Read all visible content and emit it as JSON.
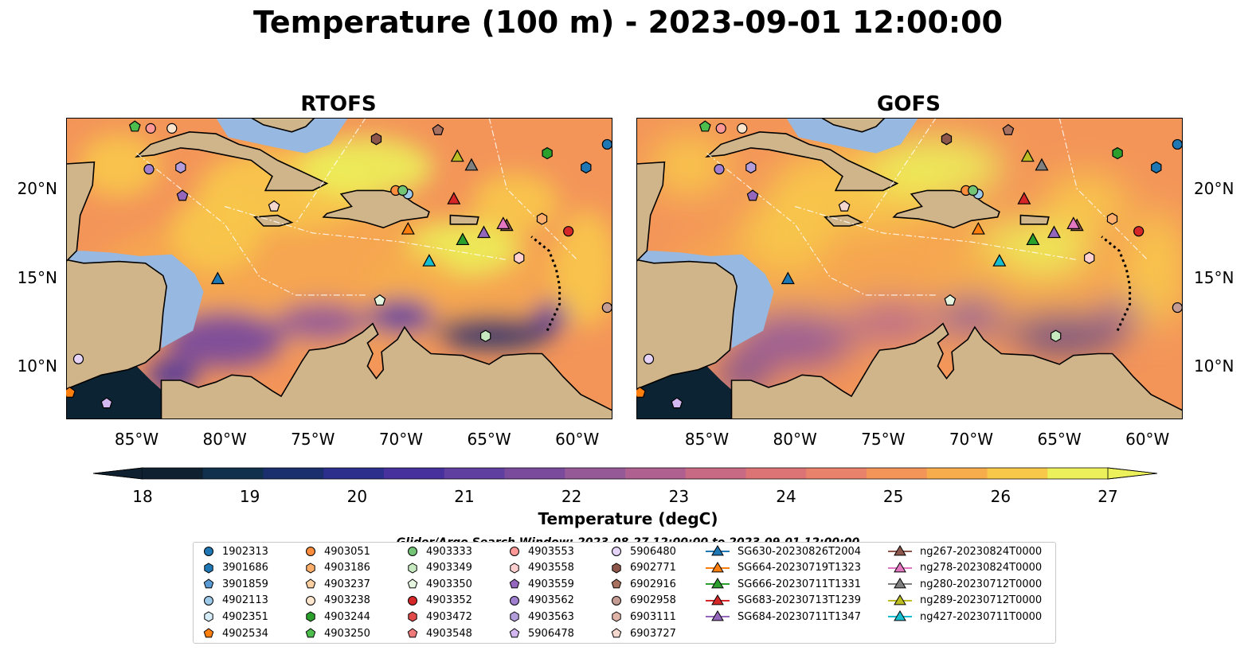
{
  "title": "Temperature (100 m) - 2023-09-01 12:00:00",
  "panels": [
    {
      "title": "RTOFS"
    },
    {
      "title": "GOFS"
    }
  ],
  "lon_ticks": [
    "85°W",
    "80°W",
    "75°W",
    "70°W",
    "65°W",
    "60°W"
  ],
  "lat_ticks": [
    "20°N",
    "15°N",
    "10°N"
  ],
  "map_extent": {
    "lon": [
      -89,
      -58
    ],
    "lat": [
      7,
      24
    ]
  },
  "colorbar": {
    "label": "Temperature (degC)",
    "ticks": [
      "18",
      "19",
      "20",
      "21",
      "22",
      "23",
      "24",
      "25",
      "26",
      "27"
    ],
    "range": [
      18,
      27
    ],
    "extend": "both",
    "colormap": "thermal",
    "colors": [
      "#0f2030",
      "#10304e",
      "#1b2f6e",
      "#2d2f8d",
      "#46319d",
      "#5f3fa0",
      "#7a4b9c",
      "#955997",
      "#b06090",
      "#c86a84",
      "#dc7375",
      "#e9826a",
      "#f39559",
      "#f7ad4c",
      "#f8c84a",
      "#ecf05a"
    ]
  },
  "colors": {
    "land": "#d0b48a",
    "shelf": "#97b8e0",
    "pacific": "#0b2333",
    "coast": "#000000"
  },
  "search_window": "Glider/Argo Search Window: 2023-08-27 12:00:00 to 2023-09-01 12:00:00",
  "legend": {
    "columns": [
      [
        {
          "label": "1902313",
          "marker": "circle",
          "color": "#1f77b4"
        },
        {
          "label": "3901686",
          "marker": "hexagon",
          "color": "#1f77b4"
        },
        {
          "label": "3901859",
          "marker": "pentagon",
          "color": "#5b9bd5"
        },
        {
          "label": "4902113",
          "marker": "circle",
          "color": "#9ecae9"
        },
        {
          "label": "4902351",
          "marker": "hexagon",
          "color": "#d5ecf7"
        },
        {
          "label": "4902534",
          "marker": "pentagon",
          "color": "#ff7f0e"
        }
      ],
      [
        {
          "label": "4903051",
          "marker": "circle",
          "color": "#fd8d3c"
        },
        {
          "label": "4903186",
          "marker": "hexagon",
          "color": "#fdae6b"
        },
        {
          "label": "4903237",
          "marker": "pentagon",
          "color": "#fdd0a2"
        },
        {
          "label": "4903238",
          "marker": "circle",
          "color": "#fee6ce"
        },
        {
          "label": "4903244",
          "marker": "hexagon",
          "color": "#2ca02c"
        },
        {
          "label": "4903250",
          "marker": "pentagon",
          "color": "#4dbd4d"
        }
      ],
      [
        {
          "label": "4903333",
          "marker": "circle",
          "color": "#74c476"
        },
        {
          "label": "4903349",
          "marker": "hexagon",
          "color": "#c7e9c0"
        },
        {
          "label": "4903350",
          "marker": "pentagon",
          "color": "#e5f5e0"
        },
        {
          "label": "4903352",
          "marker": "circle",
          "color": "#d62728"
        },
        {
          "label": "4903472",
          "marker": "hexagon",
          "color": "#e04a4a"
        },
        {
          "label": "4903548",
          "marker": "pentagon",
          "color": "#f07a7a"
        }
      ],
      [
        {
          "label": "4903553",
          "marker": "circle",
          "color": "#ff9896"
        },
        {
          "label": "4903558",
          "marker": "hexagon",
          "color": "#ffd0cf"
        },
        {
          "label": "4903559",
          "marker": "pentagon",
          "color": "#9467bd"
        },
        {
          "label": "4903562",
          "marker": "circle",
          "color": "#a07ed0"
        },
        {
          "label": "4903563",
          "marker": "hexagon",
          "color": "#b39ddb"
        },
        {
          "label": "5906478",
          "marker": "pentagon",
          "color": "#d2b7f0"
        }
      ],
      [
        {
          "label": "5906480",
          "marker": "circle",
          "color": "#e5d4f7"
        },
        {
          "label": "6902771",
          "marker": "hexagon",
          "color": "#8c564b"
        },
        {
          "label": "6902916",
          "marker": "pentagon",
          "color": "#a8705f"
        },
        {
          "label": "6902958",
          "marker": "circle",
          "color": "#c49c94"
        },
        {
          "label": "6903111",
          "marker": "hexagon",
          "color": "#e0b4a8"
        },
        {
          "label": "6903727",
          "marker": "pentagon",
          "color": "#f4d8d0"
        }
      ],
      [
        {
          "label": "SG630-20230826T2004",
          "marker": "triangle",
          "color": "#1f77b4"
        },
        {
          "label": "SG664-20230719T1323",
          "marker": "triangle",
          "color": "#ff7f0e"
        },
        {
          "label": "SG666-20230711T1331",
          "marker": "triangle",
          "color": "#2ca02c"
        },
        {
          "label": "SG683-20230713T1239",
          "marker": "triangle",
          "color": "#d62728"
        },
        {
          "label": "SG684-20230711T1347",
          "marker": "triangle",
          "color": "#9467bd"
        }
      ],
      [
        {
          "label": "ng267-20230824T0000",
          "marker": "triangle",
          "color": "#8c564b"
        },
        {
          "label": "ng278-20230824T0000",
          "marker": "triangle",
          "color": "#e377c2"
        },
        {
          "label": "ng280-20230712T0000",
          "marker": "triangle",
          "color": "#7f7f7f"
        },
        {
          "label": "ng289-20230712T0000",
          "marker": "triangle",
          "color": "#bcbd22"
        },
        {
          "label": "ng427-20230711T0000",
          "marker": "triangle",
          "color": "#17becf"
        }
      ]
    ]
  },
  "observations": [
    {
      "id": "1902313",
      "lon": -58.3,
      "lat": 22.5
    },
    {
      "id": "3901686",
      "lon": -59.5,
      "lat": 21.2
    },
    {
      "id": "4902113",
      "lon": -69.6,
      "lat": 19.7
    },
    {
      "id": "4902534",
      "lon": -88.8,
      "lat": 8.5
    },
    {
      "id": "4903051",
      "lon": -70.3,
      "lat": 19.9
    },
    {
      "id": "4903186",
      "lon": -62.0,
      "lat": 18.3
    },
    {
      "id": "4903238",
      "lon": -83.0,
      "lat": 23.4
    },
    {
      "id": "4903244",
      "lon": -61.7,
      "lat": 22.0
    },
    {
      "id": "4903250",
      "lon": -85.1,
      "lat": 23.5
    },
    {
      "id": "4903333",
      "lon": -69.9,
      "lat": 19.9
    },
    {
      "id": "4903349",
      "lon": -65.2,
      "lat": 11.7
    },
    {
      "id": "4903350",
      "lon": -71.2,
      "lat": 13.7
    },
    {
      "id": "4903352",
      "lon": -60.5,
      "lat": 17.6
    },
    {
      "id": "4903553",
      "lon": -84.2,
      "lat": 23.4
    },
    {
      "id": "4903558",
      "lon": -63.3,
      "lat": 16.1
    },
    {
      "id": "4903559",
      "lon": -82.4,
      "lat": 19.6
    },
    {
      "id": "4903562",
      "lon": -84.3,
      "lat": 21.1
    },
    {
      "id": "4903563",
      "lon": -82.5,
      "lat": 21.2
    },
    {
      "id": "5906478",
      "lon": -86.7,
      "lat": 7.9
    },
    {
      "id": "5906480",
      "lon": -88.3,
      "lat": 10.4
    },
    {
      "id": "6902771",
      "lon": -71.4,
      "lat": 22.8
    },
    {
      "id": "6902916",
      "lon": -67.9,
      "lat": 23.3
    },
    {
      "id": "6902958",
      "lon": -58.3,
      "lat": 13.3
    },
    {
      "id": "6903727",
      "lon": -77.2,
      "lat": 19.0
    },
    {
      "id": "SG630-20230826T2004",
      "lon": -80.4,
      "lat": 14.9
    },
    {
      "id": "SG664-20230719T1323",
      "lon": -69.6,
      "lat": 17.7
    },
    {
      "id": "SG666-20230711T1331",
      "lon": -66.5,
      "lat": 17.1
    },
    {
      "id": "SG683-20230713T1239",
      "lon": -67.0,
      "lat": 19.4
    },
    {
      "id": "SG684-20230711T1347",
      "lon": -65.3,
      "lat": 17.5
    },
    {
      "id": "ng267-20230824T0000",
      "lon": -64.0,
      "lat": 17.9
    },
    {
      "id": "ng278-20230824T0000",
      "lon": -64.2,
      "lat": 18.0
    },
    {
      "id": "ng280-20230712T0000",
      "lon": -66.0,
      "lat": 21.3
    },
    {
      "id": "ng289-20230712T0000",
      "lon": -66.8,
      "lat": 21.8
    },
    {
      "id": "ng427-20230711T0000",
      "lon": -68.4,
      "lat": 15.9
    }
  ]
}
